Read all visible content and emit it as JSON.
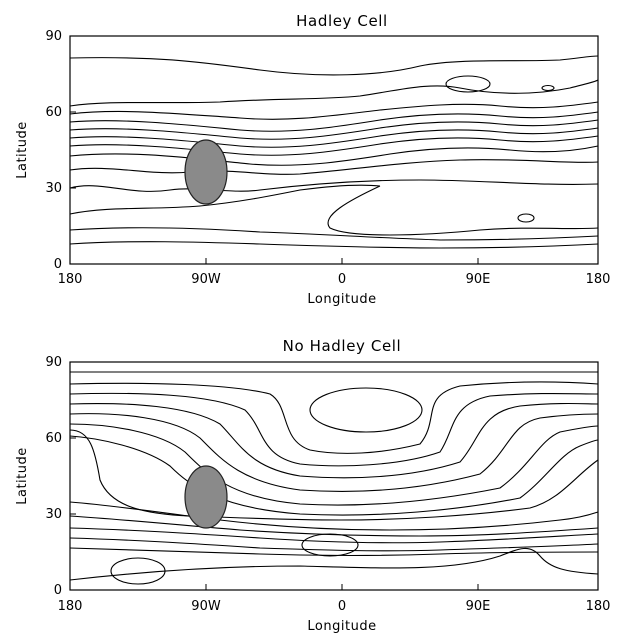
{
  "chart_data": [
    {
      "type": "contour",
      "title": "Hadley Cell",
      "xlabel": "Longitude",
      "ylabel": "Latitude",
      "xticks": [
        "180",
        "90W",
        "0",
        "90E",
        "180"
      ],
      "yticks": [
        "0",
        "30",
        "60",
        "90"
      ],
      "xlim": [
        -180,
        180
      ],
      "ylim": [
        0,
        90
      ],
      "obstacle": {
        "lon": -90,
        "lat": 37,
        "lon_halfwidth": 15,
        "lat_halfwidth": 11
      }
    },
    {
      "type": "contour",
      "title": "No Hadley Cell",
      "xlabel": "Longitude",
      "ylabel": "Latitude",
      "xticks": [
        "180",
        "90W",
        "0",
        "90E",
        "180"
      ],
      "yticks": [
        "0",
        "30",
        "60",
        "90"
      ],
      "xlim": [
        -180,
        180
      ],
      "ylim": [
        0,
        90
      ],
      "obstacle": {
        "lon": -90,
        "lat": 37,
        "lon_halfwidth": 15,
        "lat_halfwidth": 11
      }
    }
  ]
}
